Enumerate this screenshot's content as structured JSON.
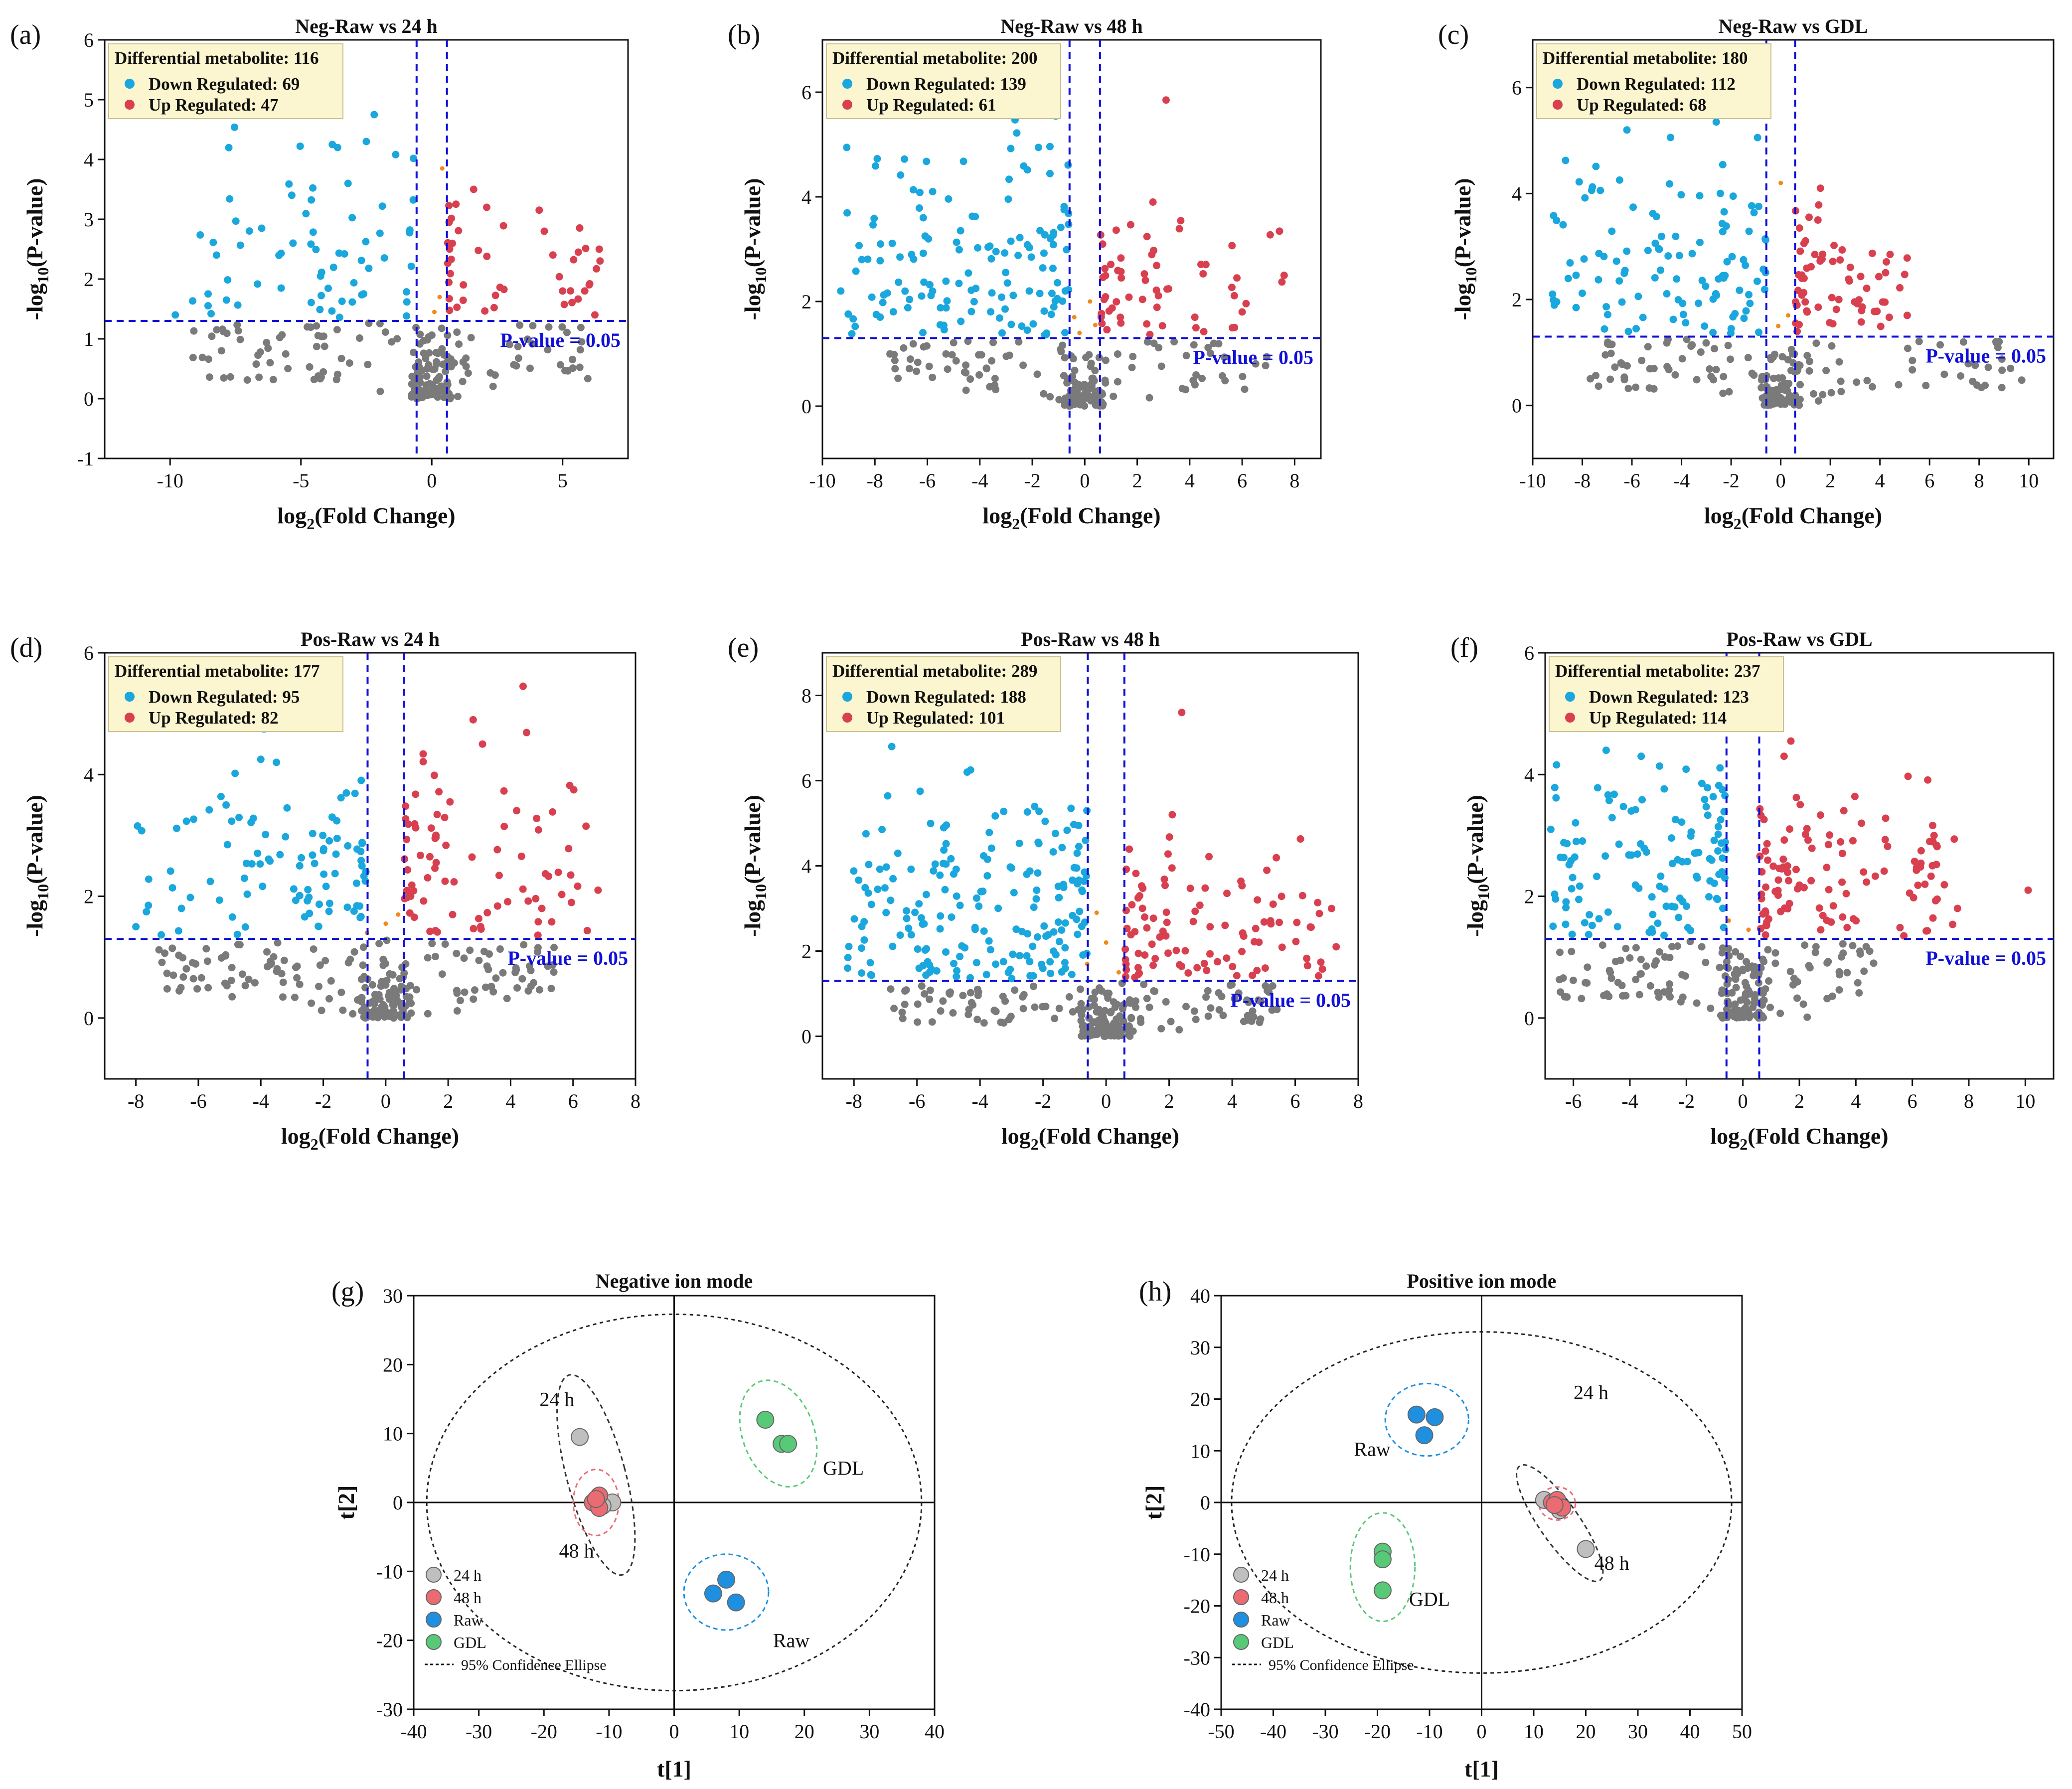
{
  "colors": {
    "down": "#1aa7dd",
    "up": "#d9404f",
    "ns": "#7a7a7a",
    "marginal": "#f08a1c",
    "threshold": "#1010d8",
    "legend_bg": "#fbf6cf",
    "legend_border": "#c9c090",
    "group_24h": "#bfbfbf",
    "group_48h": "#ea6b72",
    "group_raw": "#1f8fe0",
    "group_gdl": "#58c977",
    "ellipse": "#222222"
  },
  "chart_data": [
    {
      "type": "scatter",
      "subtype": "volcano",
      "panel": "(a)",
      "title": "Neg-Raw vs 24 h",
      "xlabel": "log2(Fold Change)",
      "ylabel": "-log10(P-value)",
      "xlim": [
        -12.5,
        7.5
      ],
      "ylim": [
        -1,
        6
      ],
      "xticks": [
        -10,
        -5,
        0,
        5
      ],
      "yticks": [
        -1,
        0,
        1,
        2,
        3,
        4,
        5,
        6
      ],
      "fc_threshold": 0.58,
      "p_threshold_line": 1.3,
      "p_label": "P-value = 0.05",
      "legend": {
        "title": "Differential metabolite: 116",
        "down": "Down Regulated: 69",
        "up": "Up Regulated: 47"
      },
      "down": {
        "n": 69,
        "xmin": -9.5,
        "xmax": -0.6,
        "ymin": 1.35,
        "ymax": 4.7,
        "highlights": [
          [
            -2.2,
            4.75
          ],
          [
            -3.8,
            4.25
          ],
          [
            -3.6,
            4.2
          ],
          [
            -2.5,
            4.3
          ],
          [
            -6.5,
            2.85
          ],
          [
            -9.8,
            1.4
          ],
          [
            -3.2,
            3.6
          ]
        ]
      },
      "up": {
        "n": 47,
        "xmin": 0.6,
        "xmax": 6.5,
        "ymin": 1.35,
        "ymax": 3.5,
        "highlights": [
          [
            6.4,
            2.5
          ],
          [
            5.6,
            2.45
          ],
          [
            5.0,
            1.8
          ],
          [
            1.6,
            3.5
          ],
          [
            4.3,
            2.8
          ],
          [
            2.1,
            3.2
          ]
        ]
      },
      "ns": {
        "n": 190,
        "xmin": -9.5,
        "xmax": 6.0,
        "ymin": 0.0,
        "ymax": 1.28
      },
      "marginal": [
        [
          0.4,
          3.85
        ],
        [
          0.3,
          1.7
        ],
        [
          0.1,
          1.45
        ]
      ]
    },
    {
      "type": "scatter",
      "subtype": "volcano",
      "panel": "(b)",
      "title": "Neg-Raw vs 48 h",
      "xlabel": "log2(Fold Change)",
      "ylabel": "-log10(P-value)",
      "xlim": [
        -10,
        9
      ],
      "ylim": [
        -1,
        7
      ],
      "xticks": [
        -10,
        -8,
        -6,
        -4,
        -2,
        0,
        2,
        4,
        6,
        8
      ],
      "yticks": [
        0,
        2,
        4,
        6
      ],
      "fc_threshold": 0.58,
      "p_threshold_line": 1.3,
      "p_label": "P-value = 0.05",
      "legend": {
        "title": "Differential metabolite: 200",
        "down": "Down Regulated: 139",
        "up": "Up Regulated: 61"
      },
      "down": {
        "n": 139,
        "xmin": -9.3,
        "xmax": -0.6,
        "ymin": 1.35,
        "ymax": 5.7,
        "highlights": [
          [
            -9.3,
            2.2
          ],
          [
            -8.5,
            2.8
          ],
          [
            -4.5,
            5.6
          ],
          [
            -7.8,
            1.7
          ],
          [
            -5.8,
            4.1
          ]
        ]
      },
      "up": {
        "n": 61,
        "xmin": 0.6,
        "xmax": 7.6,
        "ymin": 1.35,
        "ymax": 4.0,
        "highlights": [
          [
            3.1,
            5.85
          ],
          [
            7.6,
            2.5
          ],
          [
            5.8,
            2.45
          ],
          [
            2.6,
            3.9
          ],
          [
            6.0,
            1.8
          ]
        ]
      },
      "ns": {
        "n": 170,
        "xmin": -7.5,
        "xmax": 7.0,
        "ymin": 0.0,
        "ymax": 1.28
      },
      "marginal": [
        [
          0.2,
          2.0
        ],
        [
          -0.4,
          1.7
        ],
        [
          0.4,
          1.55
        ],
        [
          -0.2,
          1.4
        ]
      ]
    },
    {
      "type": "scatter",
      "subtype": "volcano",
      "panel": "(c)",
      "title": "Neg-Raw vs GDL",
      "xlabel": "log2(Fold Change)",
      "ylabel": "-log10(P-value)",
      "xlim": [
        -10,
        11
      ],
      "ylim": [
        -1,
        6.9
      ],
      "xticks": [
        -10,
        -8,
        -6,
        -4,
        -2,
        0,
        2,
        4,
        6,
        8,
        10
      ],
      "yticks": [
        0,
        2,
        4,
        6
      ],
      "fc_threshold": 0.58,
      "p_threshold_line": 1.3,
      "p_label": "P-value = 0.05",
      "legend": {
        "title": "Differential metabolite: 180",
        "down": "Down Regulated: 112",
        "up": "Up Regulated: 68"
      },
      "down": {
        "n": 112,
        "xmin": -9.2,
        "xmax": -0.6,
        "ymin": 1.35,
        "ymax": 5.3,
        "highlights": [
          [
            -7.0,
            6.15
          ],
          [
            -4.4,
            6.15
          ],
          [
            -9.2,
            2.1
          ],
          [
            -6.2,
            5.2
          ],
          [
            -2.6,
            5.35
          ]
        ]
      },
      "up": {
        "n": 68,
        "xmin": 0.6,
        "xmax": 5.2,
        "ymin": 1.35,
        "ymax": 4.1,
        "highlights": [
          [
            1.6,
            4.1
          ],
          [
            1.5,
            3.5
          ],
          [
            5.1,
            1.7
          ],
          [
            4.2,
            1.95
          ]
        ]
      },
      "ns": {
        "n": 170,
        "xmin": -8.0,
        "xmax": 9.8,
        "ymin": 0.0,
        "ymax": 1.28
      },
      "marginal": [
        [
          0.0,
          4.2
        ],
        [
          -0.1,
          1.5
        ],
        [
          0.3,
          1.7
        ]
      ]
    },
    {
      "type": "scatter",
      "subtype": "volcano",
      "panel": "(d)",
      "title": "Pos-Raw vs 24 h",
      "xlabel": "log2(Fold Change)",
      "ylabel": "-log10(P-value)",
      "xlim": [
        -9,
        8
      ],
      "ylim": [
        -1,
        6
      ],
      "xticks": [
        -8,
        -6,
        -4,
        -2,
        0,
        2,
        4,
        6,
        8
      ],
      "yticks": [
        0,
        2,
        4,
        6
      ],
      "fc_threshold": 0.58,
      "p_threshold_line": 1.3,
      "p_label": "P-value = 0.05",
      "legend": {
        "title": "Differential metabolite: 177",
        "down": "Down Regulated: 95",
        "up": "Up Regulated: 82"
      },
      "down": {
        "n": 95,
        "xmin": -8.0,
        "xmax": -0.6,
        "ymin": 1.35,
        "ymax": 4.7,
        "highlights": [
          [
            -3.9,
            4.75
          ],
          [
            -4.0,
            4.25
          ],
          [
            -3.5,
            4.2
          ],
          [
            -7.6,
            1.85
          ],
          [
            -8.0,
            1.5
          ]
        ]
      },
      "up": {
        "n": 82,
        "xmin": 0.6,
        "xmax": 6.8,
        "ymin": 1.35,
        "ymax": 4.9,
        "highlights": [
          [
            4.4,
            5.45
          ],
          [
            2.8,
            4.9
          ],
          [
            3.1,
            4.5
          ],
          [
            6.8,
            2.1
          ],
          [
            5.0,
            1.8
          ]
        ]
      },
      "ns": {
        "n": 210,
        "xmin": -7.5,
        "xmax": 5.5,
        "ymin": 0.0,
        "ymax": 1.28
      },
      "marginal": [
        [
          0.0,
          1.55
        ],
        [
          -0.6,
          1.4
        ],
        [
          0.4,
          1.7
        ]
      ]
    },
    {
      "type": "scatter",
      "subtype": "volcano",
      "panel": "(e)",
      "title": "Pos-Raw vs 48 h",
      "xlabel": "log2(Fold Change)",
      "ylabel": "-log10(P-value)",
      "xlim": [
        -9,
        8
      ],
      "ylim": [
        -1,
        9
      ],
      "xticks": [
        -8,
        -6,
        -4,
        -2,
        0,
        2,
        4,
        6,
        8
      ],
      "yticks": [
        0,
        2,
        4,
        6,
        8
      ],
      "fc_threshold": 0.58,
      "p_threshold_line": 1.3,
      "p_label": "P-value = 0.05",
      "legend": {
        "title": "Differential metabolite: 289",
        "down": "Down Regulated: 188",
        "up": "Up Regulated: 101"
      },
      "down": {
        "n": 188,
        "xmin": -8.2,
        "xmax": -0.6,
        "ymin": 1.35,
        "ymax": 6.3,
        "highlights": [
          [
            -6.8,
            6.8
          ],
          [
            -4.3,
            6.25
          ],
          [
            -5.9,
            5.75
          ],
          [
            -8.2,
            1.6
          ]
        ]
      },
      "up": {
        "n": 101,
        "xmin": 0.6,
        "xmax": 7.3,
        "ymin": 1.35,
        "ymax": 5.2,
        "highlights": [
          [
            2.4,
            7.6
          ],
          [
            7.3,
            2.1
          ],
          [
            5.3,
            3.1
          ],
          [
            4.8,
            3.2
          ],
          [
            2.1,
            5.2
          ]
        ]
      },
      "ns": {
        "n": 210,
        "xmin": -7.0,
        "xmax": 5.5,
        "ymin": 0.0,
        "ymax": 1.28
      },
      "marginal": [
        [
          -0.3,
          2.9
        ],
        [
          0.0,
          2.2
        ],
        [
          -0.6,
          1.7
        ],
        [
          0.4,
          1.5
        ]
      ]
    },
    {
      "type": "scatter",
      "subtype": "volcano",
      "panel": "(f)",
      "title": "Pos-Raw vs GDL",
      "xlabel": "log2(Fold Change)",
      "ylabel": "-log10(P-value)",
      "xlim": [
        -7,
        11
      ],
      "ylim": [
        -1,
        6
      ],
      "xticks": [
        -6,
        -4,
        -2,
        0,
        2,
        4,
        6,
        8,
        10
      ],
      "yticks": [
        0,
        2,
        4,
        6
      ],
      "fc_threshold": 0.58,
      "p_threshold_line": 1.3,
      "p_label": "P-value = 0.05",
      "legend": {
        "title": "Differential metabolite: 237",
        "down": "Down Regulated: 123",
        "up": "Up Regulated: 114"
      },
      "down": {
        "n": 123,
        "xmin": -6.8,
        "xmax": -0.6,
        "ymin": 1.35,
        "ymax": 4.6,
        "highlights": [
          [
            -3.9,
            5.0
          ],
          [
            -6.8,
            3.1
          ],
          [
            -5.9,
            2.9
          ],
          [
            -3.6,
            4.3
          ]
        ]
      },
      "up": {
        "n": 114,
        "xmin": 0.6,
        "xmax": 7.6,
        "ymin": 1.35,
        "ymax": 4.4,
        "highlights": [
          [
            1.7,
            4.55
          ],
          [
            10.1,
            2.1
          ],
          [
            7.6,
            1.8
          ],
          [
            4.2,
            3.2
          ],
          [
            5.7,
            1.35
          ]
        ]
      },
      "ns": {
        "n": 200,
        "xmin": -6.5,
        "xmax": 5.0,
        "ymin": 0.0,
        "ymax": 1.28
      },
      "marginal": [
        [
          0.2,
          1.45
        ],
        [
          -0.5,
          1.6
        ]
      ]
    },
    {
      "type": "scatter",
      "subtype": "score_plot",
      "panel": "(g)",
      "title": "Negative ion mode",
      "xlabel": "t[1]",
      "ylabel": "t[2]",
      "xlim": [
        -40,
        40
      ],
      "ylim": [
        -30,
        30
      ],
      "xticks": [
        -40,
        -30,
        -20,
        -10,
        0,
        10,
        20,
        30,
        40
      ],
      "yticks": [
        -30,
        -20,
        -10,
        0,
        10,
        20,
        30
      ],
      "confidence_ellipse": {
        "cx": 0,
        "cy": 0,
        "rx": 38,
        "ry": 27.3
      },
      "groups": [
        {
          "name": "24 h",
          "color_key": "group_24h",
          "points": [
            [
              -14.5,
              9.5
            ],
            [
              -9.5,
              0.0
            ],
            [
              -11.0,
              -0.5
            ]
          ],
          "ellipse": {
            "cx": -12.0,
            "cy": 4.0,
            "rx": 4.5,
            "ry": 15.0,
            "rotate": -15
          },
          "label": "24 h",
          "label_pos": [
            -18,
            14
          ]
        },
        {
          "name": "48 h",
          "color_key": "group_48h",
          "points": [
            [
              -11.5,
              1.0
            ],
            [
              -12.5,
              0.0
            ],
            [
              -11.5,
              -0.8
            ],
            [
              -12.0,
              0.5
            ]
          ],
          "ellipse": {
            "cx": -12.0,
            "cy": 0.0,
            "rx": 3.5,
            "ry": 4.8,
            "rotate": 0
          },
          "label": "48 h",
          "label_pos": [
            -15,
            -8
          ]
        },
        {
          "name": "Raw",
          "color_key": "group_raw",
          "points": [
            [
              8.0,
              -11.2
            ],
            [
              6.0,
              -13.2
            ],
            [
              9.5,
              -14.5
            ]
          ],
          "ellipse": {
            "cx": 8.0,
            "cy": -13.0,
            "rx": 6.5,
            "ry": 5.5,
            "rotate": 0
          },
          "label": "Raw",
          "label_pos": [
            18,
            -21
          ]
        },
        {
          "name": "GDL",
          "color_key": "group_gdl",
          "points": [
            [
              14.0,
              12.0
            ],
            [
              16.5,
              8.5
            ],
            [
              17.5,
              8.5
            ]
          ],
          "ellipse": {
            "cx": 16.0,
            "cy": 10.0,
            "rx": 5.5,
            "ry": 8.0,
            "rotate": -20
          },
          "label": "GDL",
          "label_pos": [
            26,
            4
          ]
        }
      ],
      "legend": [
        "24 h",
        "48 h",
        "Raw",
        "GDL",
        "95% Confidence Ellipse"
      ]
    },
    {
      "type": "scatter",
      "subtype": "score_plot",
      "panel": "(h)",
      "title": "Positive ion mode",
      "xlabel": "t[1]",
      "ylabel": "t[2]",
      "xlim": [
        -50,
        50
      ],
      "ylim": [
        -40,
        40
      ],
      "xticks": [
        -50,
        -40,
        -30,
        -20,
        -10,
        0,
        10,
        20,
        30,
        40,
        50
      ],
      "yticks": [
        -40,
        -30,
        -20,
        -10,
        0,
        10,
        20,
        30,
        40
      ],
      "confidence_ellipse": {
        "cx": 0,
        "cy": 0,
        "rx": 48,
        "ry": 33
      },
      "groups": [
        {
          "name": "24 h",
          "color_key": "group_24h",
          "points": [
            [
              12.0,
              0.5
            ],
            [
              20.0,
              -9.0
            ],
            [
              15.0,
              -1.5
            ]
          ],
          "ellipse": {
            "cx": 15.0,
            "cy": -4.0,
            "rx": 3.8,
            "ry": 13.5,
            "rotate": -35
          },
          "label": "24 h",
          "label_pos": [
            21,
            20
          ]
        },
        {
          "name": "48 h",
          "color_key": "group_48h",
          "points": [
            [
              13.5,
              0.0
            ],
            [
              14.5,
              0.5
            ],
            [
              15.5,
              -1.0
            ],
            [
              14.0,
              -0.5
            ]
          ],
          "ellipse": {
            "cx": 14.5,
            "cy": -0.2,
            "rx": 3.5,
            "ry": 3.2,
            "rotate": 0
          },
          "label": "48 h",
          "label_pos": [
            25,
            -13
          ]
        },
        {
          "name": "Raw",
          "color_key": "group_raw",
          "points": [
            [
              -12.5,
              17.0
            ],
            [
              -9.0,
              16.5
            ],
            [
              -11.0,
              13.0
            ]
          ],
          "ellipse": {
            "cx": -10.5,
            "cy": 16.0,
            "rx": 8.0,
            "ry": 7.0,
            "rotate": 0
          },
          "label": "Raw",
          "label_pos": [
            -21,
            9
          ]
        },
        {
          "name": "GDL",
          "color_key": "group_gdl",
          "points": [
            [
              -19.0,
              -9.5
            ],
            [
              -19.0,
              -11.0
            ],
            [
              -19.0,
              -17.0
            ]
          ],
          "ellipse": {
            "cx": -19.0,
            "cy": -12.5,
            "rx": 6.2,
            "ry": 10.5,
            "rotate": 0
          },
          "label": "GDL",
          "label_pos": [
            -10,
            -20
          ]
        }
      ],
      "legend": [
        "24 h",
        "48 h",
        "Raw",
        "GDL",
        "95% Confidence Ellipse"
      ]
    }
  ]
}
